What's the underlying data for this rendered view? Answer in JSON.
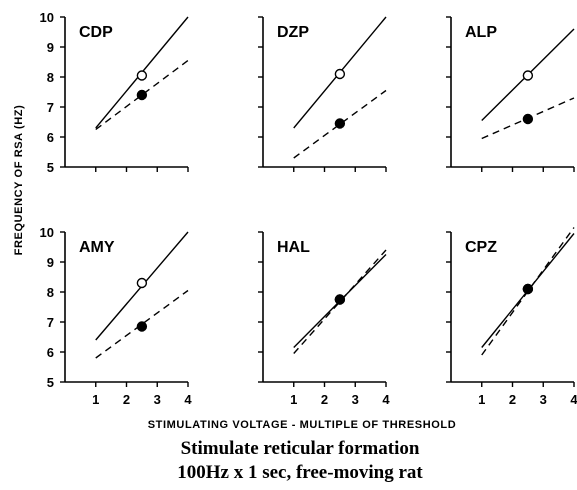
{
  "chart_data": {
    "type": "line",
    "ylabel": "FREQUENCY OF RSA (HZ)",
    "xlabel": "STIMULATING VOLTAGE - MULTIPLE OF THRESHOLD",
    "xlim": [
      0,
      4
    ],
    "ylim": [
      5,
      10
    ],
    "x_ticks": [
      1,
      2,
      3,
      4
    ],
    "y_ticks": [
      5,
      6,
      7,
      8,
      9,
      10
    ],
    "grid": false,
    "panels": [
      {
        "name": "CDP",
        "series": [
          {
            "style": "solid",
            "x": [
              1,
              4
            ],
            "y": [
              6.3,
              10.0
            ],
            "marker": {
              "x": 2.5,
              "y": 8.05,
              "fill": "open"
            }
          },
          {
            "style": "dashed",
            "x": [
              1,
              4
            ],
            "y": [
              6.25,
              8.55
            ],
            "marker": {
              "x": 2.5,
              "y": 7.4,
              "fill": "filled"
            }
          }
        ]
      },
      {
        "name": "DZP",
        "series": [
          {
            "style": "solid",
            "x": [
              1,
              4
            ],
            "y": [
              6.3,
              10.0
            ],
            "marker": {
              "x": 2.5,
              "y": 8.1,
              "fill": "open"
            }
          },
          {
            "style": "dashed",
            "x": [
              1,
              4
            ],
            "y": [
              5.3,
              7.55
            ],
            "marker": {
              "x": 2.5,
              "y": 6.45,
              "fill": "filled"
            }
          }
        ]
      },
      {
        "name": "ALP",
        "series": [
          {
            "style": "solid",
            "x": [
              1,
              4
            ],
            "y": [
              6.55,
              9.6
            ],
            "marker": {
              "x": 2.5,
              "y": 8.05,
              "fill": "open"
            }
          },
          {
            "style": "dashed",
            "x": [
              1,
              4
            ],
            "y": [
              5.95,
              7.3
            ],
            "marker": {
              "x": 2.5,
              "y": 6.6,
              "fill": "filled"
            }
          }
        ]
      },
      {
        "name": "AMY",
        "series": [
          {
            "style": "solid",
            "x": [
              1,
              4
            ],
            "y": [
              6.4,
              10.0
            ],
            "marker": {
              "x": 2.5,
              "y": 8.3,
              "fill": "open"
            }
          },
          {
            "style": "dashed",
            "x": [
              1,
              4
            ],
            "y": [
              5.8,
              8.05
            ],
            "marker": {
              "x": 2.5,
              "y": 6.85,
              "fill": "filled"
            }
          }
        ]
      },
      {
        "name": "HAL",
        "series": [
          {
            "style": "solid",
            "x": [
              1,
              4
            ],
            "y": [
              6.15,
              9.25
            ],
            "marker": {
              "x": 2.5,
              "y": 7.75,
              "fill": "open"
            }
          },
          {
            "style": "dashed",
            "x": [
              1,
              4
            ],
            "y": [
              5.95,
              9.4
            ],
            "marker": {
              "x": 2.5,
              "y": 7.75,
              "fill": "filled"
            }
          }
        ]
      },
      {
        "name": "CPZ",
        "series": [
          {
            "style": "solid",
            "x": [
              1,
              4
            ],
            "y": [
              6.15,
              9.95
            ],
            "marker": {
              "x": 2.5,
              "y": 8.1,
              "fill": "open"
            }
          },
          {
            "style": "dashed",
            "x": [
              1,
              4
            ],
            "y": [
              5.9,
              10.15
            ],
            "marker": {
              "x": 2.5,
              "y": 8.1,
              "fill": "filled"
            }
          }
        ]
      }
    ]
  },
  "caption": {
    "line1": "Stimulate reticular formation",
    "line2": "100Hz x 1 sec, free-moving rat"
  }
}
